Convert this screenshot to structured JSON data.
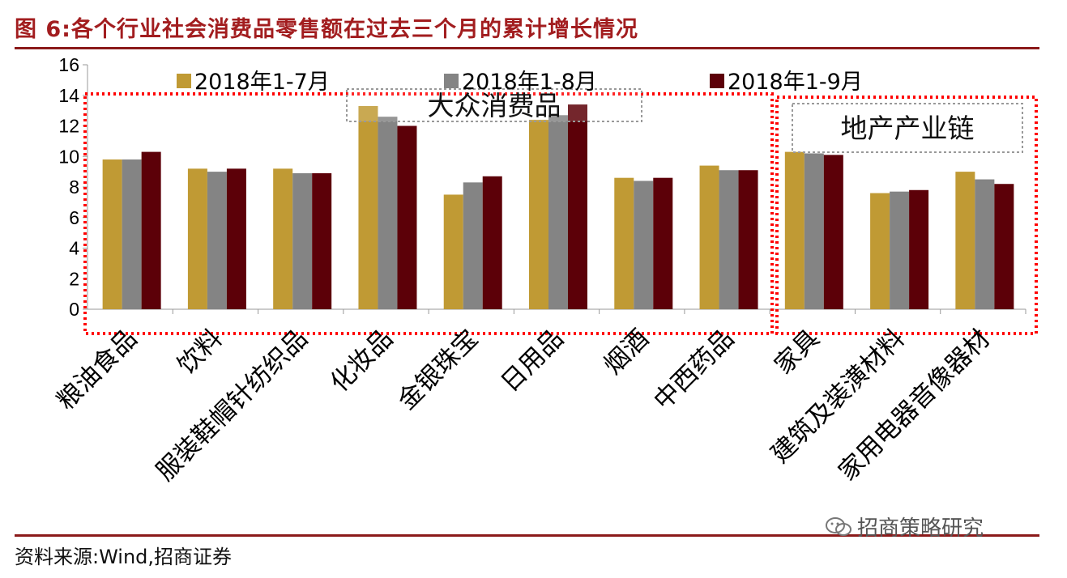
{
  "title": "图 6:各个行业社会消费品零售额在过去三个月的累计增长情况",
  "source": "资料来源:Wind,招商证券",
  "watermark": "招商策略研究",
  "groups": [
    {
      "label": "大众消费品",
      "color": "#ff0000"
    },
    {
      "label": "地产产业链",
      "color": "#ff0000"
    }
  ],
  "chart_data": {
    "type": "bar",
    "categories": [
      "粮油食品",
      "饮料",
      "服装鞋帽针纺织品",
      "化妆品",
      "金银珠宝",
      "日用品",
      "烟酒",
      "中西药品",
      "家具",
      "建筑及装潢材料",
      "家用电器音像器材"
    ],
    "series": [
      {
        "name": "2018年1-7月",
        "color": "#c09a34",
        "values": [
          9.8,
          9.2,
          9.2,
          13.3,
          7.5,
          12.4,
          8.6,
          9.4,
          10.3,
          7.6,
          9.0
        ]
      },
      {
        "name": "2018年1-8月",
        "color": "#848484",
        "values": [
          9.8,
          9.0,
          8.9,
          12.6,
          8.3,
          12.7,
          8.4,
          9.1,
          10.2,
          7.7,
          8.5
        ]
      },
      {
        "name": "2018年1-9月",
        "color": "#5c0008",
        "values": [
          10.3,
          9.2,
          8.9,
          12.0,
          8.7,
          13.4,
          8.6,
          9.1,
          10.1,
          7.8,
          8.2
        ]
      }
    ],
    "ylim": [
      0,
      16
    ],
    "yticks": [
      0,
      2,
      4,
      6,
      8,
      10,
      12,
      14,
      16
    ],
    "legend": "top"
  }
}
